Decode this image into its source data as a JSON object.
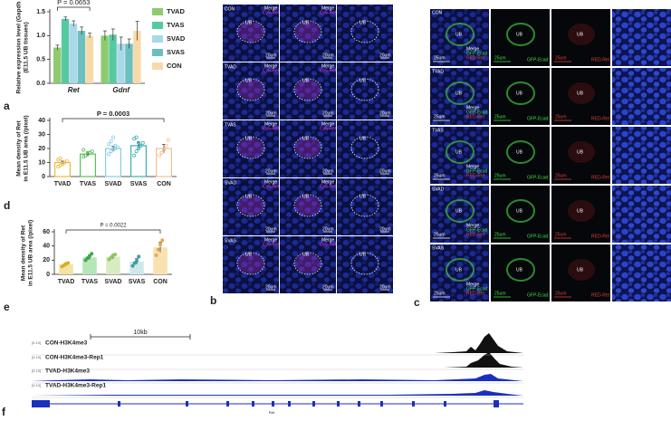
{
  "panel_labels": [
    "a",
    "b",
    "c",
    "d",
    "e",
    "f"
  ],
  "chart_data": [
    {
      "type": "bar",
      "ylabel": [
        "Relative expression level (Gapdh",
        "(E11.5 UB tissues)"
      ],
      "annotation": "P = 0.0653",
      "categories": [
        "Ret",
        "Gdnf"
      ],
      "series": [
        {
          "name": "TVAD",
          "color": "#8ecb6e",
          "values": [
            0.75,
            1.0
          ],
          "errors": [
            0.05,
            0.1
          ]
        },
        {
          "name": "TVAS",
          "color": "#56c9a2",
          "values": [
            1.35,
            1.02
          ],
          "errors": [
            0.04,
            0.12
          ]
        },
        {
          "name": "SVAD",
          "color": "#a9d8ea",
          "values": [
            1.25,
            0.83
          ],
          "errors": [
            0.06,
            0.14
          ]
        },
        {
          "name": "SVAS",
          "color": "#6bbfbf",
          "values": [
            1.1,
            0.83
          ],
          "errors": [
            0.08,
            0.1
          ]
        },
        {
          "name": "CON",
          "color": "#f8d9a8",
          "values": [
            1.0,
            1.1
          ],
          "errors": [
            0.05,
            0.2
          ]
        }
      ],
      "ylim": [
        0,
        1.5
      ],
      "yticks": [
        {
          "value": 0,
          "label": "0.0"
        },
        {
          "value": 0.5,
          "label": "0.5"
        },
        {
          "value": 1,
          "label": "1.0"
        },
        {
          "value": 1.5,
          "label": "1.5"
        }
      ]
    },
    {
      "type": "bar",
      "fill": false,
      "ylabel": [
        "Mean density of Ret",
        "in E11.5 UB area (/pixel)"
      ],
      "annotation": "P = 0.0003",
      "categories": [
        "TVAD",
        "TVAS",
        "SVAD",
        "SVAS",
        "CON"
      ],
      "values": [
        10,
        16,
        20,
        22,
        20
      ],
      "errors": [
        1,
        1.5,
        1.5,
        2.5,
        3
      ],
      "colors": [
        "#f0b840",
        "#5cbf5c",
        "#86cde6",
        "#3fb0b0",
        "#f2c08e"
      ],
      "points": [
        [
          7,
          8,
          9,
          10,
          11,
          12,
          13,
          9
        ],
        [
          14,
          15,
          16,
          17,
          18,
          19,
          15
        ],
        [
          16,
          18,
          19,
          20,
          21,
          23,
          25,
          28,
          22
        ],
        [
          15,
          18,
          20,
          22,
          24,
          27,
          28,
          24
        ],
        [
          15,
          17,
          19,
          22,
          26
        ]
      ],
      "ylim": [
        0,
        40
      ],
      "yticks": [
        0,
        10,
        20,
        30,
        40
      ]
    },
    {
      "type": "bar",
      "fill": true,
      "ylabel": [
        "Mean density of Ret",
        "in E11.5 UB area (/pixel)"
      ],
      "annotation": "P = 0.0022",
      "categories": [
        "TVAD",
        "TVAS",
        "SVAD",
        "SVAS",
        "CON"
      ],
      "values": [
        14,
        24,
        25,
        18,
        38
      ],
      "errors": [
        2,
        3,
        3,
        4,
        7
      ],
      "colors": [
        "#f4e3a0",
        "#b4e6b8",
        "#d8ecc2",
        "#cfe9ea",
        "#f8e2b0"
      ],
      "point_colors": [
        "#d8b020",
        "#3ca84a",
        "#8cc860",
        "#3aa0a8",
        "#e8a850"
      ],
      "points": [
        [
          11,
          13,
          15,
          16
        ],
        [
          20,
          23,
          26,
          29
        ],
        [
          21,
          24,
          27,
          28
        ],
        [
          12,
          16,
          19,
          25
        ],
        [
          27,
          35,
          42,
          48
        ]
      ],
      "ylim": [
        0,
        60
      ],
      "yticks": [
        0,
        20,
        40,
        60
      ]
    }
  ],
  "panel_b": {
    "rows": [
      "CON",
      "TVAD",
      "TVAS",
      "SVAD",
      "SVAS"
    ],
    "merge_label": "Merge",
    "channel_label": "Cy5-Ret",
    "region_label": "UB",
    "scale": "20um"
  },
  "panel_c": {
    "rows": [
      "CON",
      "TVAD",
      "TVAS",
      "SVAD",
      "SVAS"
    ],
    "region_label": "UB",
    "scale": "25um",
    "merge_labels": [
      "Merge",
      "GFP-Ecad",
      "RED-Ret"
    ],
    "green_label": "GFP-Ecad",
    "red_label": "RED-Ret"
  },
  "panel_f": {
    "scale": "10kb",
    "range": "[0-10]",
    "tracks": [
      "CON-H3K4me3",
      "CON-H3K4me3-Rep1",
      "TVAD-H3K4me3",
      "TVAD-H3K4me3-Rep1"
    ],
    "gene": "Ret"
  }
}
